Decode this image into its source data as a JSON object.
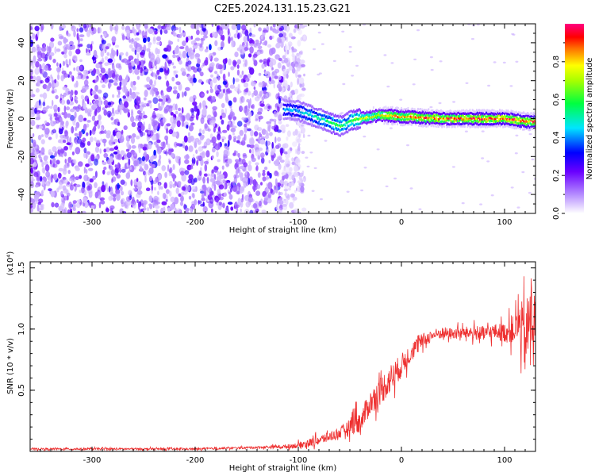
{
  "title": "C2E5.2024.131.15.23.G21",
  "chart_data": [
    {
      "type": "heatmap",
      "xlabel": "Height of straight line (km)",
      "ylabel": "Frequency (Hz)",
      "xlim": [
        -360,
        130
      ],
      "ylim": [
        -50,
        50
      ],
      "xticks": [
        -300,
        -200,
        -100,
        0,
        100
      ],
      "yticks": [
        -40,
        -20,
        0,
        20,
        40
      ],
      "xtick_labels": [
        "-300",
        "-200",
        "-100",
        "0",
        "100"
      ],
      "ytick_labels": [
        "-40",
        "-20",
        "0",
        "20",
        "40"
      ],
      "colorbar": {
        "label": "Normalized spectral amplitude",
        "range": [
          0,
          1
        ],
        "ticks": [
          0.0,
          0.2,
          0.4,
          0.6,
          0.8
        ],
        "tick_labels": [
          "0.0",
          "0.2",
          "0.4",
          "0.6",
          "0.8"
        ],
        "colors": [
          "#ffffff",
          "#7a00ff",
          "#0000ff",
          "#00ffff",
          "#00ff00",
          "#ffff00",
          "#ff0000",
          "#ff00ff"
        ]
      },
      "noise_region": {
        "x": [
          -360,
          -100
        ],
        "level": 0.2
      },
      "signal_ridge": {
        "x": [
          -115,
          -100,
          -90,
          -80,
          -70,
          -60,
          -55,
          -50,
          -40,
          -30,
          -20,
          -10,
          0,
          10,
          20,
          40,
          60,
          80,
          100,
          120,
          130
        ],
        "y": [
          5,
          4,
          2,
          0,
          -2,
          -4,
          -3,
          -1,
          0,
          1,
          2,
          1.5,
          1,
          1,
          0.5,
          0,
          0,
          0,
          0,
          -1.5,
          -1.5
        ],
        "amplitude": [
          0.4,
          0.45,
          0.5,
          0.5,
          0.55,
          0.6,
          0.55,
          0.6,
          0.7,
          0.75,
          0.8,
          0.85,
          0.85,
          0.9,
          0.9,
          0.9,
          0.92,
          0.95,
          0.95,
          0.95,
          0.95
        ]
      }
    },
    {
      "type": "line",
      "xlabel": "Height of straight line (km)",
      "ylabel": "SNR (10 * v/v)",
      "scale_label": "(x10⁴)",
      "xlim": [
        -360,
        130
      ],
      "ylim": [
        0,
        1.55
      ],
      "xticks": [
        -300,
        -200,
        -100,
        0,
        100
      ],
      "yticks": [
        0.5,
        1.0,
        1.5
      ],
      "xtick_labels": [
        "-300",
        "-200",
        "-100",
        "0",
        "100"
      ],
      "ytick_labels": [
        "0.5",
        "1.0",
        "1.5"
      ],
      "color": "#ee3030",
      "series": [
        {
          "x": [
            -360,
            -300,
            -200,
            -150,
            -110,
            -100,
            -90,
            -80,
            -70,
            -60,
            -50,
            -45,
            -40,
            -35,
            -30,
            -20,
            -10,
            0,
            10,
            20,
            30,
            40,
            50,
            60,
            70,
            80,
            90,
            100,
            110,
            115,
            120,
            125,
            130
          ],
          "y": [
            0.02,
            0.02,
            0.02,
            0.03,
            0.04,
            0.05,
            0.07,
            0.09,
            0.12,
            0.15,
            0.2,
            0.3,
            0.22,
            0.32,
            0.4,
            0.5,
            0.6,
            0.7,
            0.82,
            0.9,
            0.95,
            0.97,
            0.96,
            0.97,
            0.97,
            0.96,
            0.98,
            0.97,
            1.0,
            1.05,
            0.9,
            1.1,
            1.05
          ],
          "noise": [
            0.01,
            0.01,
            0.01,
            0.01,
            0.02,
            0.03,
            0.04,
            0.05,
            0.05,
            0.06,
            0.08,
            0.2,
            0.12,
            0.12,
            0.12,
            0.15,
            0.15,
            0.12,
            0.1,
            0.08,
            0.06,
            0.06,
            0.06,
            0.06,
            0.07,
            0.08,
            0.08,
            0.1,
            0.15,
            0.25,
            0.35,
            0.4,
            0.3
          ]
        }
      ]
    }
  ]
}
